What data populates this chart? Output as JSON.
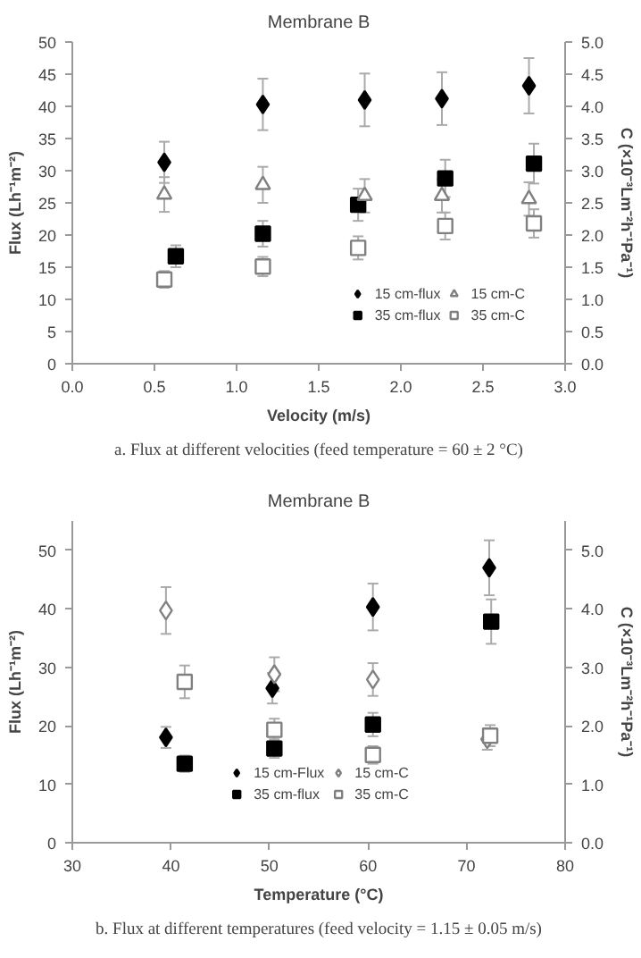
{
  "chart_data": [
    {
      "type": "scatter",
      "title": "Membrane B",
      "xlabel": "Velocity (m/s)",
      "ylabel": "Flux (Lh⁻¹m⁻²)",
      "y2label": "C (×10⁻³Lm⁻²h⁻¹Pa⁻¹)",
      "annotations": [
        "a. Flux at different velocities (feed temperature = 60 ± 2 °C)"
      ],
      "xlim": [
        0,
        3
      ],
      "xticks": [
        {
          "value": 0,
          "label": "0.0"
        },
        0.5,
        {
          "value": 1,
          "label": "1.0"
        },
        1.5,
        {
          "value": 2,
          "label": "2.0"
        },
        2.5,
        {
          "value": 3,
          "label": "3.0"
        }
      ],
      "ylim": [
        0,
        50
      ],
      "yticks": [
        0,
        5,
        10,
        15,
        20,
        25,
        30,
        35,
        40,
        45,
        50
      ],
      "y2lim": [
        0,
        5
      ],
      "y2ticks": [
        {
          "value": 0,
          "label": "0.0"
        },
        0.5,
        {
          "value": 1,
          "label": "1.0"
        },
        1.5,
        {
          "value": 2,
          "label": "2.0"
        },
        2.5,
        {
          "value": 3,
          "label": "3.0"
        },
        3.5,
        {
          "value": 4,
          "label": "4.0"
        },
        4.5,
        {
          "value": 5,
          "label": "5.0"
        }
      ],
      "grid": false,
      "legend": "bottom right",
      "series": [
        {
          "name": "15 cm-flux",
          "color": "#000000",
          "marker": "diamond",
          "x": [
            0.56,
            1.16,
            1.78,
            2.25,
            2.78
          ],
          "values": [
            31.3,
            40.3,
            41.0,
            41.2,
            43.2
          ],
          "errors": [
            3.2,
            4.0,
            4.1,
            4.1,
            4.3
          ]
        },
        {
          "name": "35 cm-flux",
          "color": "#000000",
          "marker": "square",
          "x": [
            0.63,
            1.16,
            1.74,
            2.27,
            2.81
          ],
          "values": [
            16.7,
            20.2,
            24.7,
            28.8,
            31.1
          ],
          "errors": [
            1.7,
            2.0,
            2.5,
            2.9,
            3.1
          ]
        },
        {
          "name": "15 cm-C",
          "color": "#808080",
          "marker": "triangle",
          "axis": "y2",
          "x": [
            0.56,
            1.16,
            1.78,
            2.25,
            2.78
          ],
          "values": [
            2.63,
            2.78,
            2.61,
            2.61,
            2.56
          ],
          "errors": [
            0.27,
            0.28,
            0.26,
            0.26,
            0.26
          ]
        },
        {
          "name": "35 cm-C",
          "color": "#808080",
          "marker": "square",
          "axis": "y2",
          "x": [
            0.56,
            1.16,
            1.74,
            2.27,
            2.81
          ],
          "values": [
            1.31,
            1.51,
            1.8,
            2.14,
            2.18
          ],
          "errors": [
            0.13,
            0.15,
            0.18,
            0.21,
            0.22
          ]
        }
      ]
    },
    {
      "type": "scatter",
      "title": "Membrane B",
      "xlabel": "Temperature (°C)",
      "ylabel": "Flux (Lh⁻¹m⁻²)",
      "y2label": "C (×10⁻³Lm⁻²h⁻¹Pa⁻¹)",
      "annotations": [
        "b. Flux at different temperatures (feed velocity = 1.15 ± 0.05 m/s)"
      ],
      "xlim": [
        30,
        80
      ],
      "xticks": [
        30,
        40,
        50,
        60,
        70,
        80
      ],
      "ylim": [
        0,
        55
      ],
      "yticks": [
        0,
        10,
        20,
        30,
        40,
        50
      ],
      "y2lim": [
        0,
        5.5
      ],
      "y2ticks": [
        {
          "value": 0,
          "label": "0.0"
        },
        {
          "value": 1,
          "label": "1.0"
        },
        {
          "value": 2,
          "label": "2.0"
        },
        {
          "value": 3,
          "label": "3.0"
        },
        {
          "value": 4,
          "label": "4.0"
        },
        {
          "value": 5,
          "label": "5.0"
        }
      ],
      "grid": false,
      "legend": "bottom",
      "series": [
        {
          "name": "15 cm-Flux",
          "color": "#000000",
          "marker": "diamond",
          "x": [
            39.5,
            50.3,
            60.5,
            72.3
          ],
          "values": [
            18.0,
            26.4,
            40.3,
            47.0
          ],
          "errors": [
            1.8,
            2.6,
            4.0,
            4.7
          ]
        },
        {
          "name": "35 cm-flux",
          "color": "#000000",
          "marker": "square",
          "x": [
            41.4,
            50.5,
            60.5,
            72.5
          ],
          "values": [
            13.5,
            16.1,
            20.2,
            37.8
          ],
          "errors": [
            1.4,
            1.6,
            2.0,
            3.8
          ]
        },
        {
          "name": "15 cm-C",
          "color": "#808080",
          "marker": "diamond",
          "axis": "y2",
          "x": [
            39.5,
            50.5,
            60.5,
            72.1
          ],
          "values": [
            3.97,
            2.88,
            2.79,
            1.77
          ],
          "errors": [
            0.4,
            0.29,
            0.28,
            0.18
          ]
        },
        {
          "name": "35 cm-C",
          "color": "#808080",
          "marker": "square",
          "axis": "y2",
          "x": [
            41.4,
            50.5,
            60.5,
            72.4
          ],
          "values": [
            2.75,
            1.93,
            1.5,
            1.83
          ],
          "errors": [
            0.28,
            0.19,
            0.15,
            0.18
          ]
        }
      ]
    }
  ]
}
